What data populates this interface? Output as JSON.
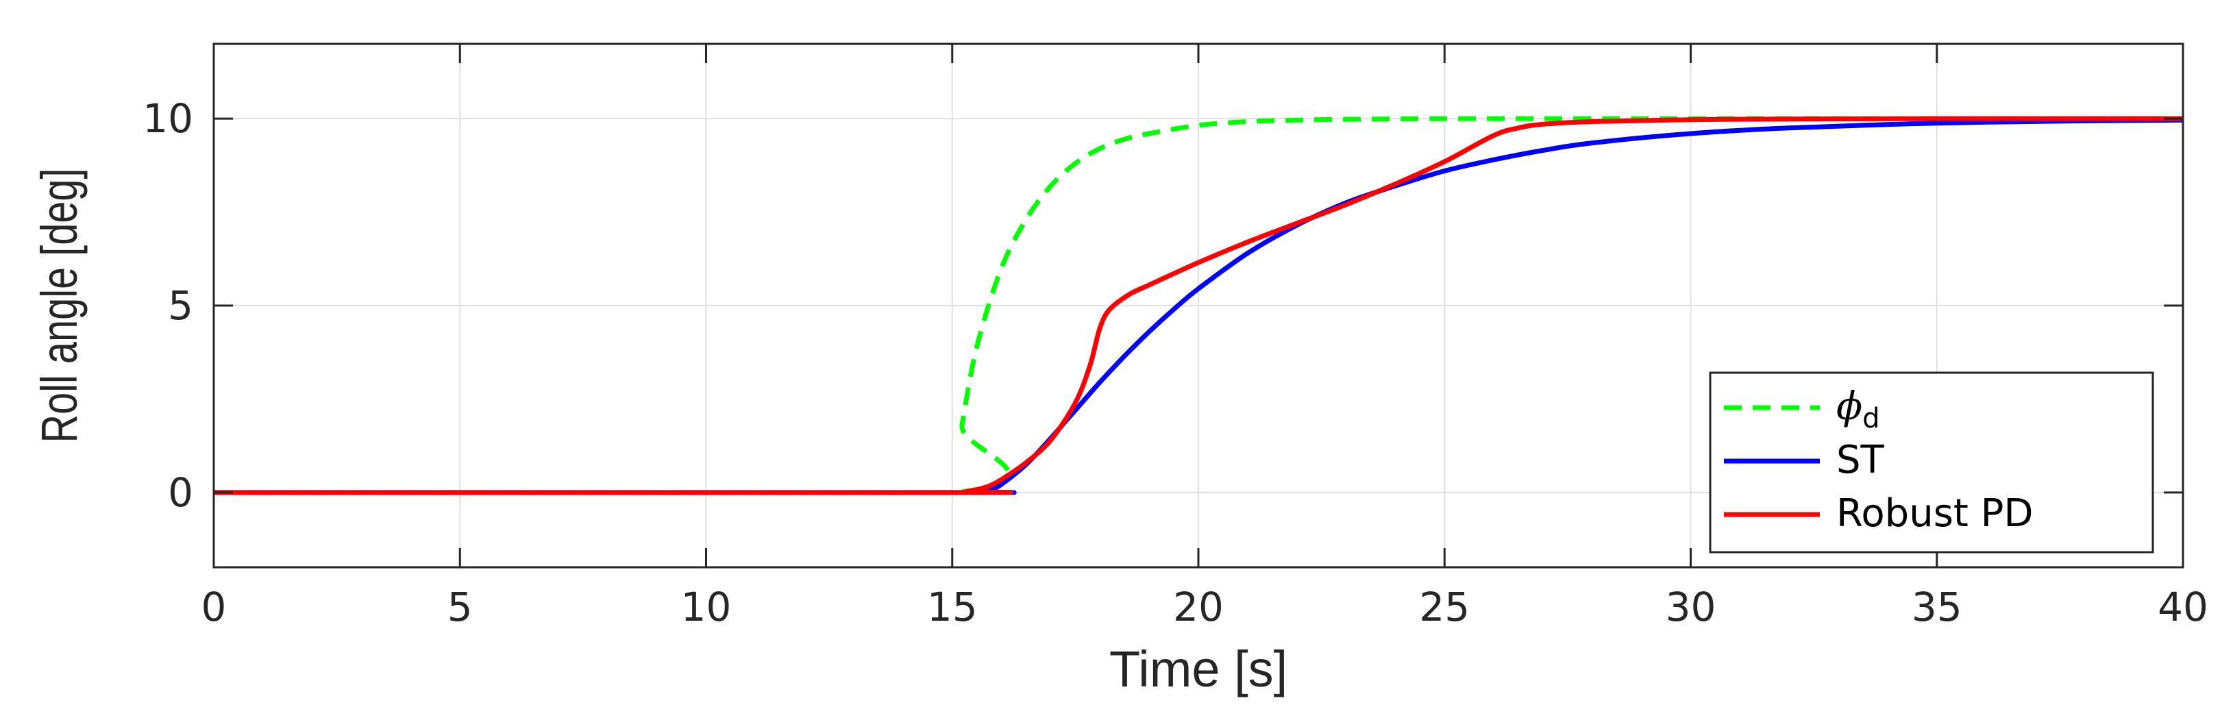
{
  "chart_data": {
    "type": "line",
    "xlabel": "Time [s]",
    "ylabel": "Roll angle [deg]",
    "xlim": [
      0,
      40
    ],
    "ylim": [
      -2,
      12
    ],
    "xticks": [
      0,
      5,
      10,
      15,
      20,
      25,
      30,
      35,
      40
    ],
    "yticks": [
      0,
      5,
      10
    ],
    "grid": true,
    "legend_position": "bottom-right",
    "series": [
      {
        "name": "ϕ",
        "name_subscript": "d",
        "color": "#00ff00",
        "style": "dashed",
        "x": [
          0,
          15,
          15.2,
          15.5,
          16,
          16.5,
          17,
          17.5,
          18,
          18.5,
          19,
          20,
          21,
          22,
          23,
          25,
          28,
          32,
          40
        ],
        "y": [
          0,
          0,
          1.8,
          3.9,
          6.0,
          7.3,
          8.2,
          8.8,
          9.2,
          9.45,
          9.6,
          9.82,
          9.92,
          9.96,
          9.98,
          10.0,
          10.0,
          10.0,
          10.0
        ]
      },
      {
        "name": "ST",
        "color": "#0000ff",
        "style": "solid",
        "x": [
          0,
          15,
          15.5,
          15.8,
          16,
          16.5,
          17,
          17.5,
          18,
          18.5,
          19,
          19.5,
          20,
          21,
          22,
          23,
          24,
          25,
          26,
          27,
          28,
          30,
          32,
          35,
          38,
          40
        ],
        "y": [
          0,
          0,
          0.0,
          0.08,
          0.22,
          0.75,
          1.45,
          2.2,
          2.95,
          3.65,
          4.3,
          4.9,
          5.45,
          6.4,
          7.15,
          7.75,
          8.2,
          8.6,
          8.9,
          9.15,
          9.35,
          9.6,
          9.75,
          9.88,
          9.94,
          9.96
        ]
      },
      {
        "name": "Robust PD",
        "color": "#ff0000",
        "style": "solid",
        "x": [
          0,
          15,
          15.3,
          15.7,
          16,
          16.5,
          17,
          17.5,
          17.8,
          18,
          18.2,
          18.6,
          19,
          20,
          21,
          22,
          23,
          24,
          25,
          26,
          26.5,
          27,
          28,
          30,
          32,
          35,
          40
        ],
        "y": [
          0,
          0,
          0.03,
          0.15,
          0.35,
          0.8,
          1.4,
          2.4,
          3.4,
          4.4,
          4.9,
          5.3,
          5.55,
          6.15,
          6.7,
          7.2,
          7.7,
          8.25,
          8.85,
          9.55,
          9.75,
          9.85,
          9.92,
          9.97,
          9.99,
          10.0,
          10.0
        ]
      }
    ]
  }
}
